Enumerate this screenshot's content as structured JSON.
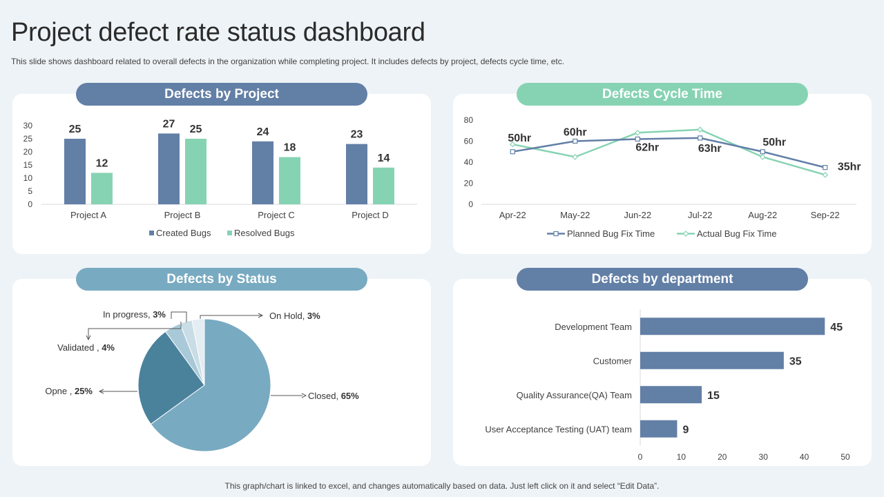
{
  "header": {
    "title": "Project defect rate status dashboard",
    "subtitle": "This slide shows dashboard related to overall defects in the organization while completing project. It includes defects by project, defects cycle time, etc."
  },
  "footer": "This graph/chart is linked to excel, and changes automatically based on data. Just left click on it and select “Edit Data”.",
  "colors": {
    "created": "#627fa6",
    "resolved": "#86d3b3",
    "planned": "#627fa6",
    "actual": "#86d3b3",
    "pill_project": "#627fa6",
    "pill_cycle": "#86d3b3",
    "pill_status": "#78aac1",
    "pill_department": "#627fa6",
    "pie": [
      "#78aac1",
      "#4a829c",
      "#a9c9d8",
      "#c9dde6",
      "#e3edf2"
    ],
    "department_bar": "#627fa6"
  },
  "panels": {
    "project": "Defects by Project",
    "cycle": "Defects Cycle Time",
    "status": "Defects by Status",
    "department": "Defects by department"
  },
  "chart_data": [
    {
      "id": "defects-by-project",
      "type": "bar",
      "title": "Defects by Project",
      "categories": [
        "Project A",
        "Project B",
        "Project C",
        "Project D"
      ],
      "series": [
        {
          "name": "Created Bugs",
          "values": [
            25,
            27,
            24,
            23
          ]
        },
        {
          "name": "Resolved Bugs",
          "values": [
            12,
            25,
            18,
            14
          ]
        }
      ],
      "yticks": [
        "0",
        "5",
        "10",
        "15",
        "20",
        "25",
        "30"
      ],
      "ylim": [
        0,
        30
      ],
      "legend": "bottom"
    },
    {
      "id": "defects-cycle-time",
      "type": "line",
      "title": "Defects Cycle Time",
      "categories": [
        "Apr-22",
        "May-22",
        "Jun-22",
        "Jul-22",
        "Aug-22",
        "Sep-22"
      ],
      "series": [
        {
          "name": "Planned Bug Fix Time",
          "values": [
            50,
            60,
            62,
            63,
            50,
            35
          ]
        },
        {
          "name": "Actual Bug Fix Time",
          "values": [
            57,
            45,
            68,
            71,
            45,
            28
          ]
        }
      ],
      "data_labels": [
        "50hr",
        "60hr",
        "62hr",
        "63hr",
        "50hr",
        "35hr"
      ],
      "yticks": [
        "0",
        "20",
        "40",
        "60",
        "80"
      ],
      "ylim": [
        0,
        80
      ],
      "legend": "bottom"
    },
    {
      "id": "defects-by-status",
      "type": "pie",
      "title": "Defects by Status",
      "slices": [
        {
          "label": "Closed",
          "value": 65,
          "pct": "65%"
        },
        {
          "label": "Opne",
          "value": 25,
          "pct": "25%"
        },
        {
          "label": "Validated",
          "value": 4,
          "pct": "4%"
        },
        {
          "label": "In progress",
          "value": 3,
          "pct": "3%"
        },
        {
          "label": "On Hold",
          "value": 3,
          "pct": "3%"
        }
      ]
    },
    {
      "id": "defects-by-department",
      "type": "bar",
      "orientation": "horizontal",
      "title": "Defects by department",
      "categories": [
        "Development Team",
        "Customer",
        "Quality Assurance(QA) Team",
        "User Acceptance Testing (UAT) team"
      ],
      "values": [
        45,
        35,
        15,
        9
      ],
      "xticks": [
        "0",
        "10",
        "20",
        "30",
        "40",
        "50"
      ],
      "xlim": [
        0,
        50
      ]
    }
  ]
}
